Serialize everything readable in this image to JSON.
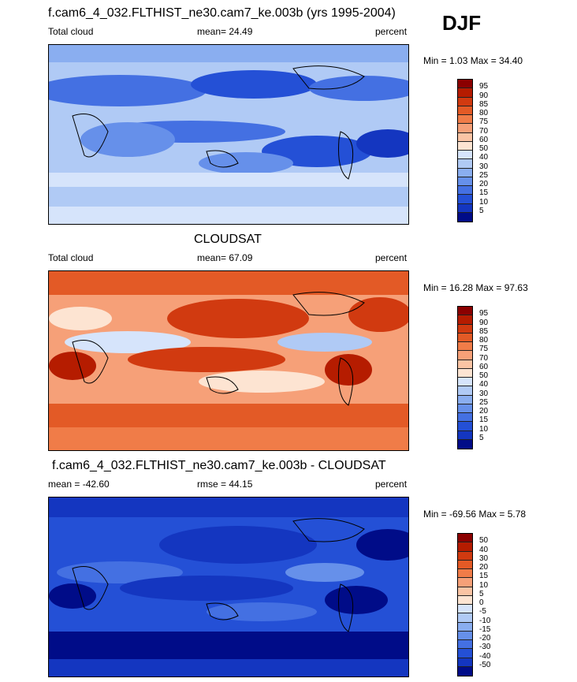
{
  "season": "DJF",
  "panels": [
    {
      "title": "f.cam6_4_032.FLTHIST_ne30.cam7_ke.003b (yrs 1995-2004)",
      "left_label": "Total cloud",
      "center_label": "mean=  24.49",
      "right_label": "percent",
      "minmax": "Min =   1.03 Max =  34.40",
      "colorbar": {
        "levels": [
          "95",
          "90",
          "85",
          "80",
          "75",
          "70",
          "60",
          "50",
          "40",
          "30",
          "25",
          "20",
          "15",
          "10",
          "5"
        ],
        "colors": [
          "#8b0000",
          "#b51c00",
          "#d13a10",
          "#e35a26",
          "#f07c48",
          "#f6a078",
          "#fac4a4",
          "#fde4d2",
          "#d6e4fb",
          "#b0caf5",
          "#8aaef0",
          "#6690ea",
          "#4470e2",
          "#2450d6",
          "#1436c0",
          "#000c88"
        ]
      }
    },
    {
      "title": "CLOUDSAT",
      "left_label": "Total cloud",
      "center_label": "mean=  67.09",
      "right_label": "percent",
      "minmax": "Min =  16.28 Max =  97.63",
      "colorbar": {
        "levels": [
          "95",
          "90",
          "85",
          "80",
          "75",
          "70",
          "60",
          "50",
          "40",
          "30",
          "25",
          "20",
          "15",
          "10",
          "5"
        ],
        "colors": [
          "#8b0000",
          "#b51c00",
          "#d13a10",
          "#e35a26",
          "#f07c48",
          "#f6a078",
          "#fac4a4",
          "#fde4d2",
          "#d6e4fb",
          "#b0caf5",
          "#8aaef0",
          "#6690ea",
          "#4470e2",
          "#2450d6",
          "#1436c0",
          "#000c88"
        ]
      }
    },
    {
      "title": "f.cam6_4_032.FLTHIST_ne30.cam7_ke.003b - CLOUDSAT",
      "left_label": "mean = -42.60",
      "center_label": "rmse =  44.15",
      "right_label": "percent",
      "minmax": "Min = -69.56 Max =   5.78",
      "colorbar": {
        "levels": [
          "50",
          "40",
          "30",
          "20",
          "15",
          "10",
          "5",
          "0",
          "-5",
          "-10",
          "-15",
          "-20",
          "-30",
          "-40",
          "-50"
        ],
        "colors": [
          "#8b0000",
          "#b51c00",
          "#d13a10",
          "#e35a26",
          "#f07c48",
          "#f6a078",
          "#fac4a4",
          "#fde4d2",
          "#d6e4fb",
          "#b0caf5",
          "#8aaef0",
          "#6690ea",
          "#4470e2",
          "#2450d6",
          "#1436c0",
          "#000c88"
        ]
      }
    }
  ]
}
